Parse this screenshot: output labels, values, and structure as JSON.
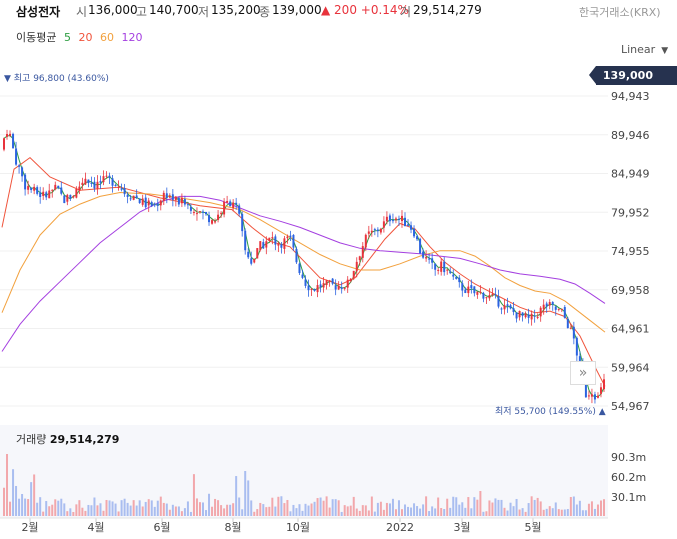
{
  "header": {
    "stock_name": "삼성전자",
    "open_label": "시",
    "open": "136,000",
    "high_label": "고",
    "high": "140,700",
    "low_label": "저",
    "low": "135,200",
    "close_label": "종",
    "close": "139,000",
    "change": "▲ 200 +0.14%",
    "volume_label": "거",
    "volume": "29,514,279",
    "exchange": "한국거래소(KRX)"
  },
  "ma_legend": {
    "title": "이동평균",
    "items": [
      {
        "label": "5",
        "color": "#2e9e42"
      },
      {
        "label": "20",
        "color": "#f0543c"
      },
      {
        "label": "60",
        "color": "#f2a13e"
      },
      {
        "label": "120",
        "color": "#a43fe0"
      }
    ]
  },
  "scale_button": {
    "label": "Linear",
    "icon": "caret-down-icon"
  },
  "price_tag": "139,000",
  "annotations": {
    "high": "▼ 최고 96,800 (43.60%)",
    "low": "최저 55,700 (149.55%) ▲"
  },
  "volume_header": {
    "label": "거래량",
    "value": "29,514,279"
  },
  "nav_button": {
    "icon": "double-chevron-right-icon",
    "label": "»"
  },
  "chart_data": {
    "type": "candlestick",
    "price_axis": {
      "ticks": [
        "94,943",
        "89,946",
        "84,949",
        "79,952",
        "74,955",
        "69,958",
        "64,961",
        "59,964",
        "54,967"
      ],
      "range": [
        53000,
        99500
      ]
    },
    "volume_axis": {
      "ticks": [
        "90.3m",
        "60.2m",
        "30.1m"
      ]
    },
    "x_ticks": [
      "2월",
      "4월",
      "6월",
      "8월",
      "10월",
      "2022",
      "3월",
      "5월"
    ],
    "close_path": [
      [
        0,
        88000
      ],
      [
        8,
        91000
      ],
      [
        15,
        87000
      ],
      [
        25,
        83500
      ],
      [
        35,
        82500
      ],
      [
        45,
        82000
      ],
      [
        55,
        83000
      ],
      [
        65,
        81500
      ],
      [
        75,
        82500
      ],
      [
        85,
        84500
      ],
      [
        95,
        83500
      ],
      [
        105,
        84000
      ],
      [
        115,
        84000
      ],
      [
        125,
        82500
      ],
      [
        135,
        82000
      ],
      [
        145,
        81000
      ],
      [
        155,
        80800
      ],
      [
        165,
        82500
      ],
      [
        175,
        81500
      ],
      [
        185,
        81000
      ],
      [
        195,
        80500
      ],
      [
        205,
        79500
      ],
      [
        215,
        79000
      ],
      [
        225,
        81000
      ],
      [
        233,
        81500
      ],
      [
        238,
        80000
      ],
      [
        245,
        75000
      ],
      [
        252,
        73500
      ],
      [
        260,
        75500
      ],
      [
        270,
        76500
      ],
      [
        280,
        76000
      ],
      [
        290,
        76500
      ],
      [
        298,
        73000
      ],
      [
        305,
        71000
      ],
      [
        312,
        70000
      ],
      [
        320,
        70500
      ],
      [
        330,
        70500
      ],
      [
        340,
        70500
      ],
      [
        348,
        70700
      ],
      [
        356,
        73500
      ],
      [
        362,
        75500
      ],
      [
        368,
        77000
      ],
      [
        376,
        77500
      ],
      [
        384,
        78500
      ],
      [
        392,
        79500
      ],
      [
        400,
        79000
      ],
      [
        408,
        78500
      ],
      [
        414,
        77500
      ],
      [
        420,
        75000
      ],
      [
        428,
        73500
      ],
      [
        435,
        72500
      ],
      [
        442,
        73000
      ],
      [
        450,
        72000
      ],
      [
        458,
        70500
      ],
      [
        466,
        70000
      ],
      [
        474,
        69500
      ],
      [
        482,
        69500
      ],
      [
        490,
        69000
      ],
      [
        498,
        68500
      ],
      [
        506,
        67500
      ],
      [
        514,
        67000
      ],
      [
        522,
        66500
      ],
      [
        530,
        66000
      ],
      [
        538,
        67000
      ],
      [
        546,
        68000
      ],
      [
        554,
        67500
      ],
      [
        562,
        67000
      ],
      [
        568,
        65500
      ],
      [
        574,
        63500
      ],
      [
        580,
        60000
      ],
      [
        586,
        56500
      ],
      [
        592,
        57000
      ],
      [
        598,
        56000
      ],
      [
        604,
        58000
      ]
    ],
    "series": [
      {
        "name": "5",
        "color": "#2e9e42"
      },
      {
        "name": "20",
        "color": "#f0543c",
        "path": [
          [
            2,
            78000
          ],
          [
            14,
            85500
          ],
          [
            30,
            87000
          ],
          [
            50,
            84500
          ],
          [
            80,
            82800
          ],
          [
            120,
            83200
          ],
          [
            160,
            81800
          ],
          [
            200,
            80800
          ],
          [
            232,
            80300
          ],
          [
            252,
            78000
          ],
          [
            270,
            76200
          ],
          [
            290,
            75500
          ],
          [
            305,
            73500
          ],
          [
            320,
            71500
          ],
          [
            340,
            70600
          ],
          [
            355,
            71500
          ],
          [
            370,
            74000
          ],
          [
            385,
            76500
          ],
          [
            400,
            78500
          ],
          [
            415,
            77800
          ],
          [
            430,
            75500
          ],
          [
            445,
            73500
          ],
          [
            460,
            72000
          ],
          [
            475,
            70700
          ],
          [
            490,
            69700
          ],
          [
            505,
            68700
          ],
          [
            520,
            67700
          ],
          [
            535,
            67000
          ],
          [
            550,
            67200
          ],
          [
            565,
            66500
          ],
          [
            580,
            64000
          ],
          [
            595,
            60000
          ],
          [
            605,
            57500
          ]
        ]
      },
      {
        "name": "60",
        "color": "#f2a13e",
        "path": [
          [
            2,
            67000
          ],
          [
            20,
            72500
          ],
          [
            40,
            77000
          ],
          [
            60,
            79700
          ],
          [
            80,
            81000
          ],
          [
            100,
            82000
          ],
          [
            120,
            82500
          ],
          [
            150,
            82300
          ],
          [
            180,
            81800
          ],
          [
            210,
            81200
          ],
          [
            240,
            80300
          ],
          [
            260,
            79000
          ],
          [
            280,
            77500
          ],
          [
            300,
            76000
          ],
          [
            320,
            74500
          ],
          [
            340,
            73300
          ],
          [
            360,
            72500
          ],
          [
            380,
            72500
          ],
          [
            400,
            73300
          ],
          [
            420,
            74300
          ],
          [
            440,
            75000
          ],
          [
            460,
            75000
          ],
          [
            475,
            74300
          ],
          [
            490,
            73000
          ],
          [
            505,
            71500
          ],
          [
            520,
            70500
          ],
          [
            535,
            69800
          ],
          [
            550,
            69500
          ],
          [
            565,
            68500
          ],
          [
            580,
            67000
          ],
          [
            595,
            65500
          ],
          [
            605,
            64500
          ]
        ]
      },
      {
        "name": "120",
        "color": "#a43fe0",
        "path": [
          [
            2,
            62000
          ],
          [
            20,
            65500
          ],
          [
            40,
            68500
          ],
          [
            60,
            71000
          ],
          [
            80,
            73500
          ],
          [
            100,
            76000
          ],
          [
            120,
            78000
          ],
          [
            140,
            80000
          ],
          [
            160,
            81300
          ],
          [
            180,
            82000
          ],
          [
            200,
            82000
          ],
          [
            220,
            81500
          ],
          [
            240,
            80500
          ],
          [
            260,
            79500
          ],
          [
            280,
            78800
          ],
          [
            300,
            78000
          ],
          [
            320,
            77000
          ],
          [
            340,
            76000
          ],
          [
            360,
            75300
          ],
          [
            380,
            75000
          ],
          [
            400,
            74800
          ],
          [
            420,
            74600
          ],
          [
            440,
            74300
          ],
          [
            460,
            74000
          ],
          [
            480,
            73300
          ],
          [
            500,
            72500
          ],
          [
            520,
            72000
          ],
          [
            540,
            71700
          ],
          [
            560,
            71300
          ],
          [
            575,
            70700
          ],
          [
            590,
            69500
          ],
          [
            605,
            68200
          ]
        ]
      }
    ]
  }
}
